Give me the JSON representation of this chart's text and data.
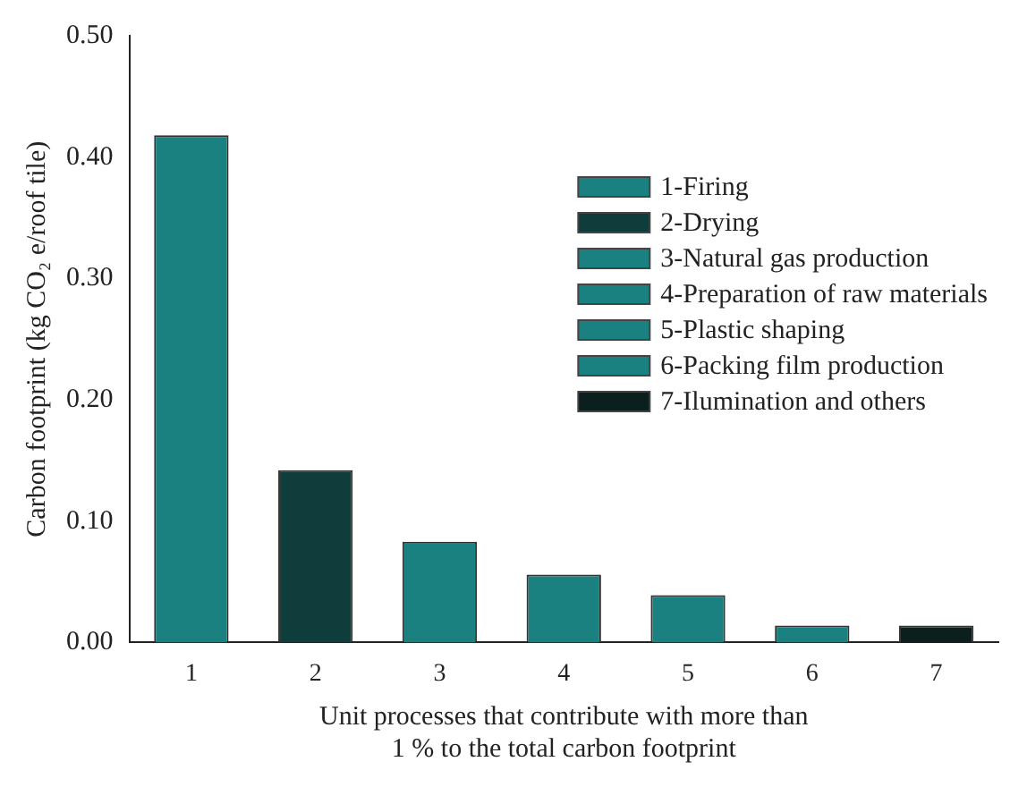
{
  "chart_data": {
    "type": "bar",
    "xlabel": "Unit processes that contribute with more than\n1 % to the total carbon footprint",
    "ylabel": "Carbon footprint (kg CO₂ e/roof tile)",
    "categories": [
      "1",
      "2",
      "3",
      "4",
      "5",
      "6",
      "7"
    ],
    "stacked": true,
    "series": [
      {
        "name": "1-Firing",
        "color": "#1a8080",
        "values": [
          0.418,
          null,
          null,
          null,
          null,
          null,
          null
        ]
      },
      {
        "name": "2-Drying",
        "color": "#0f3d3b",
        "values": [
          null,
          0.142,
          null,
          null,
          null,
          null,
          null
        ]
      },
      {
        "name": "3-Natural gas production",
        "color": "#1a8080",
        "values": [
          null,
          null,
          0.083,
          null,
          null,
          null,
          null
        ]
      },
      {
        "name": "4-Preparation of raw materials",
        "color": "#1a8080",
        "values": [
          null,
          null,
          null,
          0.056,
          null,
          null,
          null
        ]
      },
      {
        "name": "5-Plastic shaping",
        "color": "#1a8080",
        "values": [
          null,
          null,
          null,
          null,
          0.039,
          null,
          null
        ]
      },
      {
        "name": "6-Packing film production",
        "color": "#1a8080",
        "values": [
          null,
          null,
          null,
          null,
          null,
          0.014,
          null
        ]
      },
      {
        "name": "7-Ilumination and others",
        "color": "#0a1f1e",
        "values": [
          null,
          null,
          null,
          null,
          null,
          null,
          0.014
        ]
      }
    ],
    "ylim": [
      0,
      0.5
    ],
    "yticks": [
      {
        "value": 0,
        "label": "0.00"
      },
      {
        "value": 0.1,
        "label": "0.10"
      },
      {
        "value": 0.2,
        "label": "0.20"
      },
      {
        "value": 0.3,
        "label": "0.30"
      },
      {
        "value": 0.4,
        "label": "0.40"
      },
      {
        "value": 0.5,
        "label": "0.50"
      }
    ],
    "grid": false,
    "legend": "top right"
  }
}
